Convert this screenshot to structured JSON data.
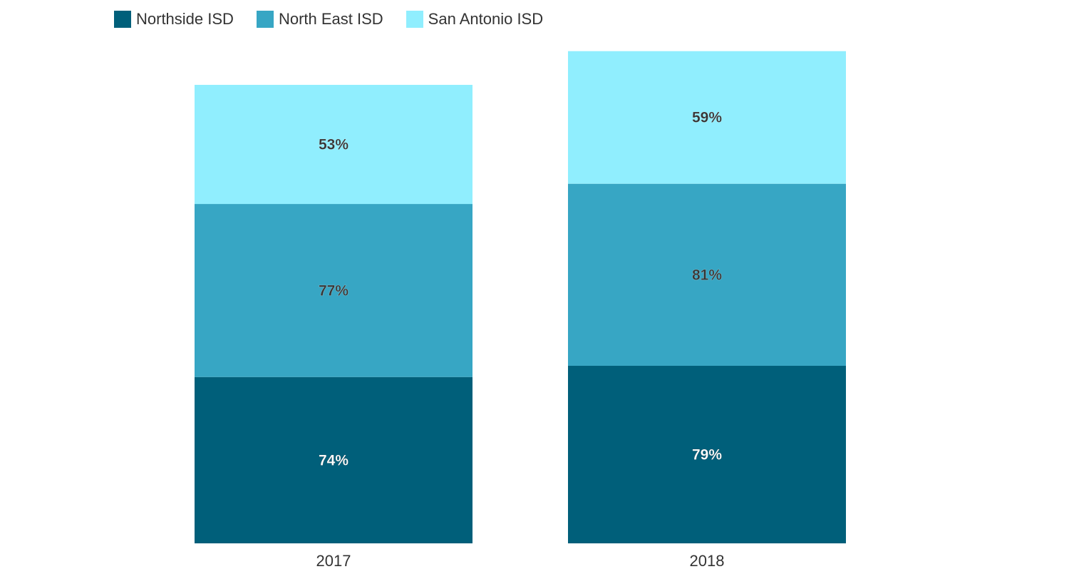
{
  "chart_data": {
    "type": "bar",
    "stacked": true,
    "categories": [
      "2017",
      "2018"
    ],
    "series": [
      {
        "name": "Northside ISD",
        "values": [
          74,
          79
        ],
        "color": "#005f7a",
        "label_color": "#ffffff"
      },
      {
        "name": "North East ISD",
        "values": [
          77,
          81
        ],
        "color": "#37a6c4",
        "label_color": "#333333"
      },
      {
        "name": "San Antonio ISD",
        "values": [
          53,
          59
        ],
        "color": "#90eefe",
        "label_color": "#333333"
      }
    ],
    "value_suffix": "%",
    "title": "",
    "xlabel": "",
    "ylabel": "",
    "grid": false,
    "legend_position": "top-left"
  }
}
